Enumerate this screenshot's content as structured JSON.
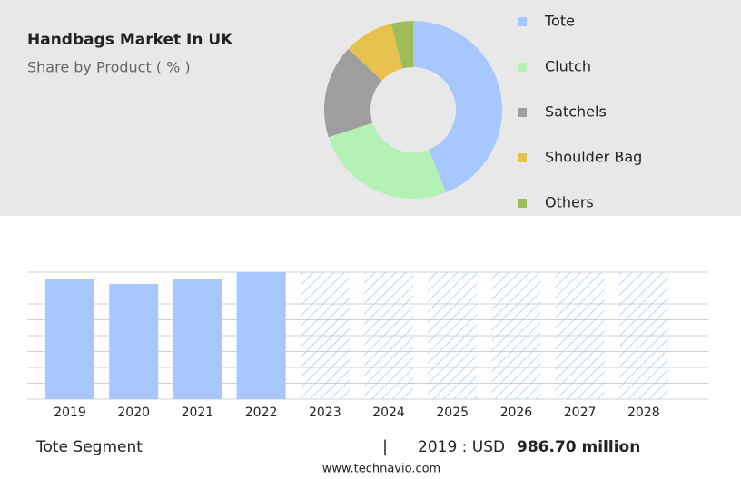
{
  "title": "Handbags Market In UK",
  "subtitle": "Share by Product ( % )",
  "chart_data": [
    {
      "type": "donut",
      "categories": [
        "Tote",
        "Clutch",
        "Satchels",
        "Shoulder Bag",
        "Others"
      ],
      "values": [
        44,
        26,
        17,
        9,
        4
      ],
      "colors": [
        "#a6c8ff",
        "#b4f1b4",
        "#9e9e9e",
        "#e6c14e",
        "#9fbc5a"
      ]
    },
    {
      "type": "bar",
      "categories": [
        "2019",
        "2020",
        "2021",
        "2022",
        "2023",
        "2024",
        "2025",
        "2026",
        "2027",
        "2028"
      ],
      "values": [
        986.7,
        943,
        981,
        1040,
        null,
        null,
        null,
        null,
        null,
        null
      ],
      "color": "#a6c8ff",
      "ylim": [
        0,
        1040
      ],
      "yticks": [
        0,
        130,
        260,
        390,
        520,
        650,
        780,
        910,
        1040
      ],
      "grid": true
    }
  ],
  "footer": {
    "segment": "Tote Segment",
    "separator": "|",
    "year_label": "2019 : USD",
    "value": "986.70 million",
    "source": "www.technavio.com"
  }
}
